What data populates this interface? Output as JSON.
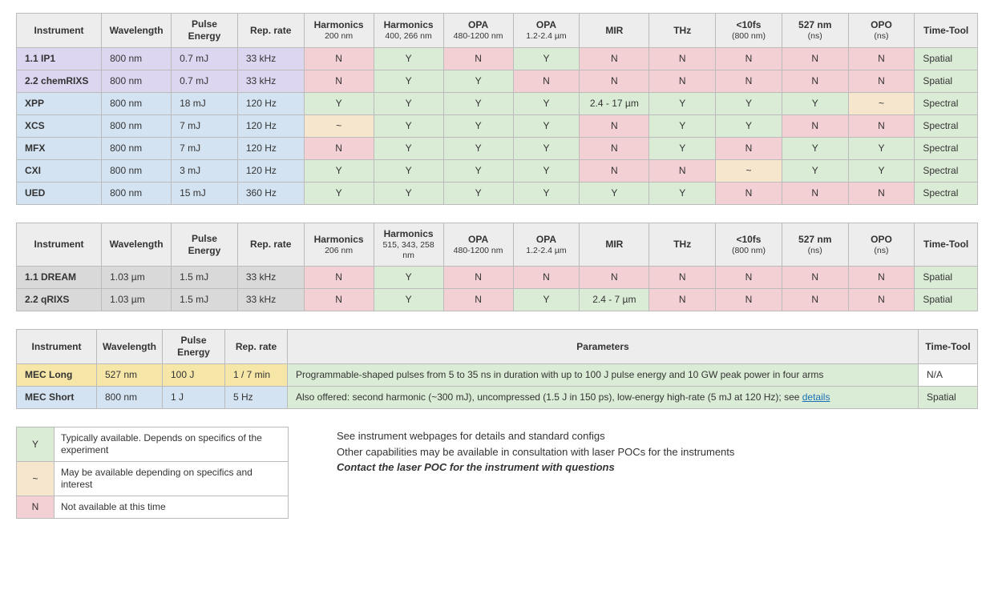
{
  "colors": {
    "purple": "#dcd6f0",
    "blue": "#d4e3f2",
    "gray": "#d9d9d9",
    "yellow": "#f6e6a8",
    "green": "#dbecd6",
    "red": "#f3d0d3",
    "tan": "#f7e6ce",
    "header": "#ededed",
    "border": "#bbbbbb"
  },
  "yn_colors": {
    "Y": "green",
    "N": "red",
    "~": "tan"
  },
  "t1": {
    "headers": [
      {
        "main": "Instrument"
      },
      {
        "main": "Wavelength"
      },
      {
        "main": "Pulse Energy"
      },
      {
        "main": "Rep. rate"
      },
      {
        "main": "Harmonics",
        "sub": "200 nm"
      },
      {
        "main": "Harmonics",
        "sub": "400, 266 nm"
      },
      {
        "main": "OPA",
        "sub": "480-1200 nm"
      },
      {
        "main": "OPA",
        "sub": "1.2-2.4 µm"
      },
      {
        "main": "MIR"
      },
      {
        "main": "THz"
      },
      {
        "main": "<10fs",
        "sub": "(800 nm)"
      },
      {
        "main": "527 nm",
        "sub": "(ns)"
      },
      {
        "main": "OPO",
        "sub": "(ns)"
      },
      {
        "main": "Time-Tool"
      }
    ],
    "rows": [
      {
        "inst": "1.1 IP1",
        "inst_bg": "purple",
        "wl": "800 nm",
        "pe": "0.7 mJ",
        "rr": "33 kHz",
        "base_bg": "purple",
        "h200": "N",
        "h400": "Y",
        "opa1": "N",
        "opa2": "Y",
        "mir": "N",
        "thz": "N",
        "lt10": "N",
        "nm527": "N",
        "opo": "N",
        "tt": "Spatial",
        "tt_bg": "green"
      },
      {
        "inst": "2.2 chemRIXS",
        "inst_bg": "purple",
        "wl": "800 nm",
        "pe": "0.7 mJ",
        "rr": "33 kHz",
        "base_bg": "purple",
        "h200": "N",
        "h400": "Y",
        "opa1": "Y",
        "opa2": "N",
        "mir": "N",
        "thz": "N",
        "lt10": "N",
        "nm527": "N",
        "opo": "N",
        "tt": "Spatial",
        "tt_bg": "green"
      },
      {
        "inst": "XPP",
        "inst_bg": "blue",
        "wl": "800 nm",
        "pe": "18 mJ",
        "rr": "120 Hz",
        "base_bg": "blue",
        "h200": "Y",
        "h400": "Y",
        "opa1": "Y",
        "opa2": "Y",
        "mir": "2.4 - 17 µm",
        "mir_bg": "green",
        "thz": "Y",
        "lt10": "Y",
        "nm527": "Y",
        "opo": "~",
        "tt": "Spectral",
        "tt_bg": "green"
      },
      {
        "inst": "XCS",
        "inst_bg": "blue",
        "wl": "800 nm",
        "pe": "7 mJ",
        "rr": "120 Hz",
        "base_bg": "blue",
        "h200": "~",
        "h400": "Y",
        "opa1": "Y",
        "opa2": "Y",
        "mir": "N",
        "thz": "Y",
        "lt10": "Y",
        "nm527": "N",
        "opo": "N",
        "tt": "Spectral",
        "tt_bg": "green"
      },
      {
        "inst": "MFX",
        "inst_bg": "blue",
        "wl": "800 nm",
        "pe": "7 mJ",
        "rr": "120 Hz",
        "base_bg": "blue",
        "h200": "N",
        "h400": "Y",
        "opa1": "Y",
        "opa2": "Y",
        "mir": "N",
        "thz": "Y",
        "lt10": "N",
        "nm527": "Y",
        "opo": "Y",
        "tt": "Spectral",
        "tt_bg": "green"
      },
      {
        "inst": "CXI",
        "inst_bg": "blue",
        "wl": "800 nm",
        "pe": "3 mJ",
        "rr": "120 Hz",
        "base_bg": "blue",
        "h200": "Y",
        "h400": "Y",
        "opa1": "Y",
        "opa2": "Y",
        "mir": "N",
        "thz": "N",
        "lt10": "~",
        "nm527": "Y",
        "opo": "Y",
        "tt": "Spectral",
        "tt_bg": "green"
      },
      {
        "inst": "UED",
        "inst_bg": "blue",
        "wl": "800 nm",
        "pe": "15 mJ",
        "rr": "360 Hz",
        "base_bg": "blue",
        "h200": "Y",
        "h400": "Y",
        "opa1": "Y",
        "opa2": "Y",
        "mir": "Y",
        "thz": "Y",
        "lt10": "N",
        "nm527": "N",
        "opo": "N",
        "tt": "Spectral",
        "tt_bg": "green"
      }
    ]
  },
  "t2": {
    "headers": [
      {
        "main": "Instrument"
      },
      {
        "main": "Wavelength"
      },
      {
        "main": "Pulse Energy"
      },
      {
        "main": "Rep. rate"
      },
      {
        "main": "Harmonics",
        "sub": "206 nm"
      },
      {
        "main": "Harmonics",
        "sub": "515, 343, 258 nm"
      },
      {
        "main": "OPA",
        "sub": "480-1200 nm"
      },
      {
        "main": "OPA",
        "sub": "1.2-2.4 µm"
      },
      {
        "main": "MIR"
      },
      {
        "main": "THz"
      },
      {
        "main": "<10fs",
        "sub": "(800 nm)"
      },
      {
        "main": "527 nm",
        "sub": "(ns)"
      },
      {
        "main": "OPO",
        "sub": "(ns)"
      },
      {
        "main": "Time-Tool"
      }
    ],
    "rows": [
      {
        "inst": "1.1 DREAM",
        "inst_bg": "gray",
        "wl": "1.03 µm",
        "pe": "1.5 mJ",
        "rr": "33 kHz",
        "base_bg": "gray",
        "h200": "N",
        "h400": "Y",
        "opa1": "N",
        "opa2": "N",
        "mir": "N",
        "thz": "N",
        "lt10": "N",
        "nm527": "N",
        "opo": "N",
        "tt": "Spatial",
        "tt_bg": "green"
      },
      {
        "inst": "2.2 qRIXS",
        "inst_bg": "gray",
        "wl": "1.03 µm",
        "pe": "1.5 mJ",
        "rr": "33 kHz",
        "base_bg": "gray",
        "h200": "N",
        "h400": "Y",
        "opa1": "N",
        "opa2": "Y",
        "mir": "2.4 - 7 µm",
        "mir_bg": "green",
        "thz": "N",
        "lt10": "N",
        "nm527": "N",
        "opo": "N",
        "tt": "Spatial",
        "tt_bg": "green"
      }
    ]
  },
  "t3": {
    "headers": [
      {
        "main": "Instrument"
      },
      {
        "main": "Wavelength"
      },
      {
        "main": "Pulse Energy"
      },
      {
        "main": "Rep. rate"
      },
      {
        "main": "Parameters"
      },
      {
        "main": "Time-Tool"
      }
    ],
    "rows": [
      {
        "inst": "MEC Long",
        "inst_bg": "yellow",
        "wl": "527 nm",
        "pe": "100 J",
        "rr": "1 / 7 min",
        "base_bg": "yellow",
        "params": "Programmable-shaped pulses from 5 to 35 ns in duration with up to 100 J pulse energy and 10 GW peak power in four arms",
        "params_bg": "green",
        "tt": "N/A",
        "tt_bg": "none",
        "has_link": false
      },
      {
        "inst": "MEC Short",
        "inst_bg": "blue",
        "wl": "800 nm",
        "pe": "1 J",
        "rr": "5 Hz",
        "base_bg": "blue",
        "params": "Also offered: second harmonic (~300 mJ), uncompressed (1.5 J in 150 ps), low-energy high-rate (5 mJ at 120 Hz); see ",
        "params_link": "details",
        "params_bg": "green",
        "tt": "Spatial",
        "tt_bg": "green",
        "has_link": true
      }
    ]
  },
  "legend": {
    "rows": [
      {
        "sym": "Y",
        "bg": "green",
        "txt": "Typically available. Depends on specifics of the experiment"
      },
      {
        "sym": "~",
        "bg": "tan",
        "txt": "May be available depending on specifics and interest"
      },
      {
        "sym": "N",
        "bg": "red",
        "txt": "Not available at this time"
      }
    ]
  },
  "footer": {
    "line1": "See instrument webpages for details and standard configs",
    "line2": "Other capabilities may be available in consultation with laser POCs for the instruments",
    "line3": "Contact the laser POC for the instrument with questions"
  }
}
